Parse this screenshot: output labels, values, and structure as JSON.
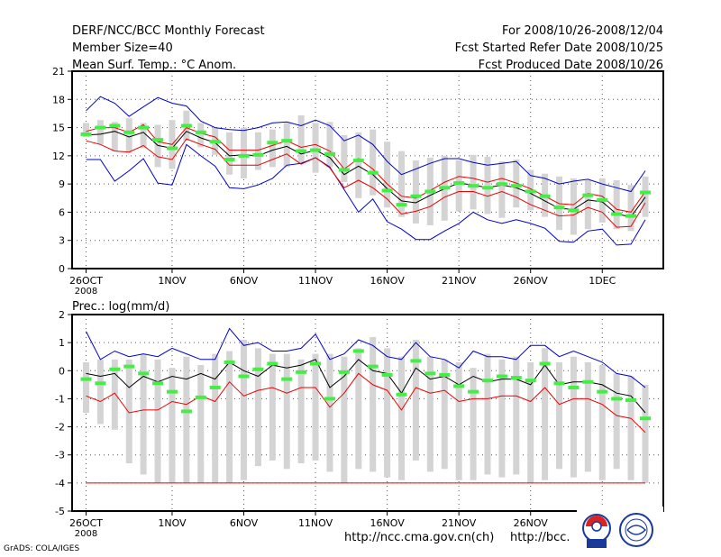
{
  "header": {
    "title": "DERF/NCC/BCC Monthly Forecast",
    "member": "Member Size=40",
    "variable": "Mean Surf. Temp.: °C Anom.",
    "period": "For 2008/10/26-2008/12/04",
    "refer": "Fcst Started Refer Date 2008/10/25",
    "produced": "Fcst Produced Date 2008/10/26"
  },
  "colors": {
    "box": "#d4d4d4",
    "median": "#44ee44",
    "mean": "#000000",
    "inner": "#ee0000",
    "outer": "#0000cc",
    "grid": "#555555"
  },
  "chart_data": [
    {
      "type": "line",
      "title": "Mean Surf. Temp.: °C Anom.",
      "ylim": [
        0,
        21
      ],
      "yticks": [
        0,
        3,
        6,
        9,
        12,
        15,
        18,
        21
      ],
      "xticks": [
        {
          "i": 0,
          "label": "26OCT",
          "sub": "2008"
        },
        {
          "i": 6,
          "label": "1NOV"
        },
        {
          "i": 11,
          "label": "6NOV"
        },
        {
          "i": 16,
          "label": "11NOV"
        },
        {
          "i": 21,
          "label": "16NOV"
        },
        {
          "i": 26,
          "label": "21NOV"
        },
        {
          "i": 31,
          "label": "26NOV"
        },
        {
          "i": 36,
          "label": "1DEC"
        }
      ],
      "days": 40,
      "series": [
        {
          "name": "box_top",
          "values": [
            15.5,
            15.8,
            15.6,
            16,
            15.5,
            15.3,
            15.8,
            16.8,
            15.5,
            15.0,
            14.5,
            15,
            14.5,
            14.8,
            15.5,
            16.3,
            15.5,
            15.6,
            14.2,
            14.5,
            14.8,
            13.5,
            12.5,
            11.5,
            11.8,
            12.0,
            11.5,
            12.1,
            11.9,
            11.4,
            11.6,
            10.5,
            10.1,
            9.8,
            9.6,
            9.4,
            9.6,
            9.4,
            8.9,
            9.8
          ]
        },
        {
          "name": "box_bottom",
          "values": [
            14.0,
            13.2,
            12.5,
            12.3,
            12.8,
            10.8,
            10.6,
            13.6,
            12.9,
            12.1,
            10.0,
            9.6,
            10.5,
            10.8,
            10.8,
            11.2,
            10.2,
            10.8,
            9.2,
            7.5,
            7.8,
            6.5,
            5.5,
            4.8,
            4.6,
            5.1,
            6.1,
            6.3,
            5.8,
            5.4,
            6.5,
            6.2,
            5.5,
            4.1,
            3.6,
            4.2,
            4.9,
            4.2,
            4.0,
            5.5
          ]
        },
        {
          "name": "median",
          "values": [
            14.3,
            15.0,
            15.2,
            14.5,
            15.0,
            13.7,
            12.8,
            15.2,
            14.5,
            13.5,
            11.6,
            12.0,
            12.1,
            13.4,
            13.6,
            12.5,
            12.6,
            12.2,
            10.5,
            11.5,
            10.2,
            8.3,
            6.8,
            7.7,
            8.2,
            8.6,
            9.1,
            8.8,
            8.6,
            9.0,
            8.8,
            8.2,
            7.7,
            6.5,
            6.2,
            7.8,
            7.3,
            5.8,
            5.6,
            8.1
          ]
        },
        {
          "name": "mean",
          "values": [
            14.2,
            14.3,
            14.6,
            14.0,
            14.5,
            13.1,
            12.8,
            14.6,
            13.9,
            13.4,
            12.0,
            12.1,
            12.0,
            12.6,
            13.0,
            12.2,
            12.6,
            11.8,
            10.0,
            10.9,
            10.0,
            8.5,
            7.2,
            7.0,
            7.8,
            8.5,
            9.1,
            8.9,
            8.6,
            8.9,
            8.6,
            8.0,
            7.2,
            6.4,
            6.3,
            7.3,
            7.1,
            5.8,
            5.5,
            7.6
          ]
        },
        {
          "name": "inner_high",
          "values": [
            14.6,
            15.0,
            15.0,
            14.5,
            15.3,
            13.5,
            13.2,
            15.0,
            14.4,
            14.0,
            12.6,
            12.6,
            12.6,
            13.1,
            13.6,
            12.9,
            13.2,
            12.5,
            10.6,
            11.7,
            10.6,
            9.0,
            7.7,
            7.5,
            8.3,
            9.2,
            9.8,
            9.6,
            9.2,
            9.6,
            9.1,
            8.5,
            7.7,
            6.9,
            6.8,
            8.0,
            7.7,
            6.3,
            6.0,
            8.2
          ]
        },
        {
          "name": "inner_low",
          "values": [
            13.6,
            13.2,
            12.5,
            12.4,
            13.1,
            11.9,
            11.6,
            13.8,
            13.2,
            12.7,
            11.0,
            11.0,
            11.0,
            11.6,
            12.2,
            11.1,
            11.8,
            10.7,
            8.6,
            9.4,
            8.6,
            7.4,
            5.8,
            6.1,
            6.6,
            7.6,
            8.2,
            8.2,
            7.7,
            8.2,
            7.6,
            6.8,
            6.2,
            5.6,
            5.7,
            6.5,
            6.0,
            4.4,
            4.5,
            7.0
          ]
        },
        {
          "name": "outer_high",
          "values": [
            16.8,
            18.3,
            17.6,
            16.2,
            17.2,
            18.2,
            17.6,
            17.3,
            15.7,
            15.0,
            14.8,
            14.7,
            15.0,
            15.5,
            15.6,
            15.2,
            15.8,
            15.2,
            13.6,
            14.2,
            13.2,
            11.4,
            10.0,
            10.6,
            11.2,
            11.7,
            11.7,
            11.3,
            11.0,
            11.2,
            11.4,
            9.9,
            9.6,
            9.0,
            9.3,
            9.5,
            9.0,
            8.6,
            8.2,
            10.4
          ]
        },
        {
          "name": "outer_low",
          "values": [
            11.6,
            11.6,
            9.3,
            10.4,
            11.7,
            9.1,
            8.9,
            13.2,
            12.0,
            10.9,
            8.6,
            8.5,
            8.9,
            9.6,
            11.0,
            11.2,
            11.8,
            10.8,
            8.4,
            6.0,
            7.4,
            5.0,
            4.2,
            3.1,
            3.1,
            4.0,
            4.8,
            6.0,
            5.2,
            4.8,
            5.2,
            4.8,
            4.3,
            2.9,
            2.8,
            4.0,
            4.2,
            2.5,
            2.6,
            5.2
          ]
        }
      ]
    },
    {
      "type": "line",
      "title": "Prec.: log(mm/d)",
      "ylim": [
        -5,
        2
      ],
      "yticks": [
        -5,
        -4,
        -3,
        -2,
        -1,
        0,
        1,
        2
      ],
      "xticks": [
        {
          "i": 0,
          "label": "26OCT",
          "sub": "2008"
        },
        {
          "i": 6,
          "label": "1NOV"
        },
        {
          "i": 11,
          "label": "6NOV"
        },
        {
          "i": 16,
          "label": "11NOV"
        },
        {
          "i": 21,
          "label": "16NOV"
        },
        {
          "i": 26,
          "label": "21NOV"
        },
        {
          "i": 31,
          "label": "26NOV"
        },
        {
          "i": 36,
          "label": "1DEC"
        }
      ],
      "days": 40,
      "floor": -4,
      "series": [
        {
          "name": "box_top",
          "values": [
            0.3,
            0.4,
            0.4,
            0.4,
            0.6,
            0.4,
            0.1,
            0.5,
            0.2,
            0.6,
            0.7,
            1.1,
            0.8,
            0.6,
            0.6,
            0.4,
            0.6,
            0.6,
            0.5,
            0.8,
            1.2,
            0.8,
            0.5,
            1.1,
            0.5,
            0.4,
            0.3,
            0.1,
            0.6,
            0.4,
            0.5,
            0.3,
            0.8,
            0.3,
            0.5,
            0.3,
            0.2,
            -0.1,
            -0.2,
            -0.5
          ]
        },
        {
          "name": "box_bottom",
          "values": [
            -1.5,
            -1.9,
            -2.1,
            -3.3,
            -3.7,
            -4.0,
            -4.0,
            -4.0,
            -4.0,
            -4.0,
            -4.0,
            -3.9,
            -3.4,
            -3.2,
            -3.5,
            -3.3,
            -3.2,
            -3.6,
            -4.0,
            -3.5,
            -3.6,
            -3.8,
            -3.9,
            -3.2,
            -3.6,
            -3.5,
            -3.9,
            -3.9,
            -3.7,
            -3.8,
            -3.7,
            -4.0,
            -3.9,
            -3.5,
            -3.8,
            -3.6,
            -3.9,
            -3.5,
            -3.9,
            -4.0
          ]
        },
        {
          "name": "median",
          "values": [
            -0.3,
            -0.45,
            0.05,
            0.15,
            -0.1,
            -0.45,
            -0.75,
            -1.45,
            -0.95,
            -0.6,
            0.3,
            -0.2,
            0.05,
            0.25,
            -0.3,
            -0.05,
            0.25,
            -1.0,
            -0.05,
            0.7,
            0.15,
            -0.15,
            -0.85,
            0.35,
            -0.1,
            -0.15,
            -0.55,
            -0.75,
            -0.35,
            -0.2,
            -0.25,
            -0.35,
            0.25,
            -0.45,
            -0.6,
            -0.4,
            -0.75,
            -1.0,
            -1.05,
            -1.7
          ]
        },
        {
          "name": "mean",
          "values": [
            -0.1,
            -0.2,
            -0.1,
            -0.6,
            -0.2,
            -0.4,
            -0.2,
            -0.3,
            -0.1,
            -0.3,
            0.3,
            0.0,
            -0.2,
            0.2,
            0.1,
            0.2,
            0.4,
            -0.6,
            -0.2,
            0.4,
            0.0,
            -0.1,
            -0.8,
            0.1,
            -0.3,
            -0.2,
            -0.5,
            -0.2,
            -0.4,
            -0.3,
            -0.3,
            -0.5,
            0.2,
            -0.5,
            -0.4,
            -0.4,
            -0.5,
            -0.8,
            -0.9,
            -1.5
          ]
        },
        {
          "name": "inner_low",
          "values": [
            -0.9,
            -1.1,
            -0.8,
            -1.5,
            -1.4,
            -1.4,
            -1.1,
            -1.2,
            -0.9,
            -1.1,
            -0.4,
            -0.9,
            -0.7,
            -0.6,
            -0.8,
            -0.6,
            -0.6,
            -1.3,
            -0.8,
            -0.1,
            -0.5,
            -0.7,
            -1.4,
            -0.6,
            -0.8,
            -0.7,
            -1.1,
            -1.0,
            -1.0,
            -0.9,
            -0.9,
            -1.1,
            -0.6,
            -1.2,
            -1.0,
            -1.0,
            -1.2,
            -1.6,
            -1.7,
            -2.2
          ]
        },
        {
          "name": "outer_high",
          "values": [
            1.4,
            0.4,
            0.7,
            0.5,
            0.6,
            0.5,
            0.8,
            0.6,
            0.4,
            0.4,
            1.5,
            0.9,
            1.0,
            0.7,
            0.7,
            0.8,
            1.3,
            0.4,
            0.6,
            1.1,
            0.9,
            0.5,
            0.4,
            1.0,
            0.5,
            0.4,
            0.1,
            0.7,
            0.5,
            0.5,
            0.4,
            0.9,
            0.9,
            0.5,
            0.7,
            0.5,
            0.3,
            -0.1,
            -0.2,
            -0.6
          ]
        }
      ]
    }
  ],
  "footer": {
    "url1": "http://ncc.cma.gov.cn(ch)",
    "url2": "http://bcc.",
    "credit": "GrADS: COLA/IGES"
  }
}
